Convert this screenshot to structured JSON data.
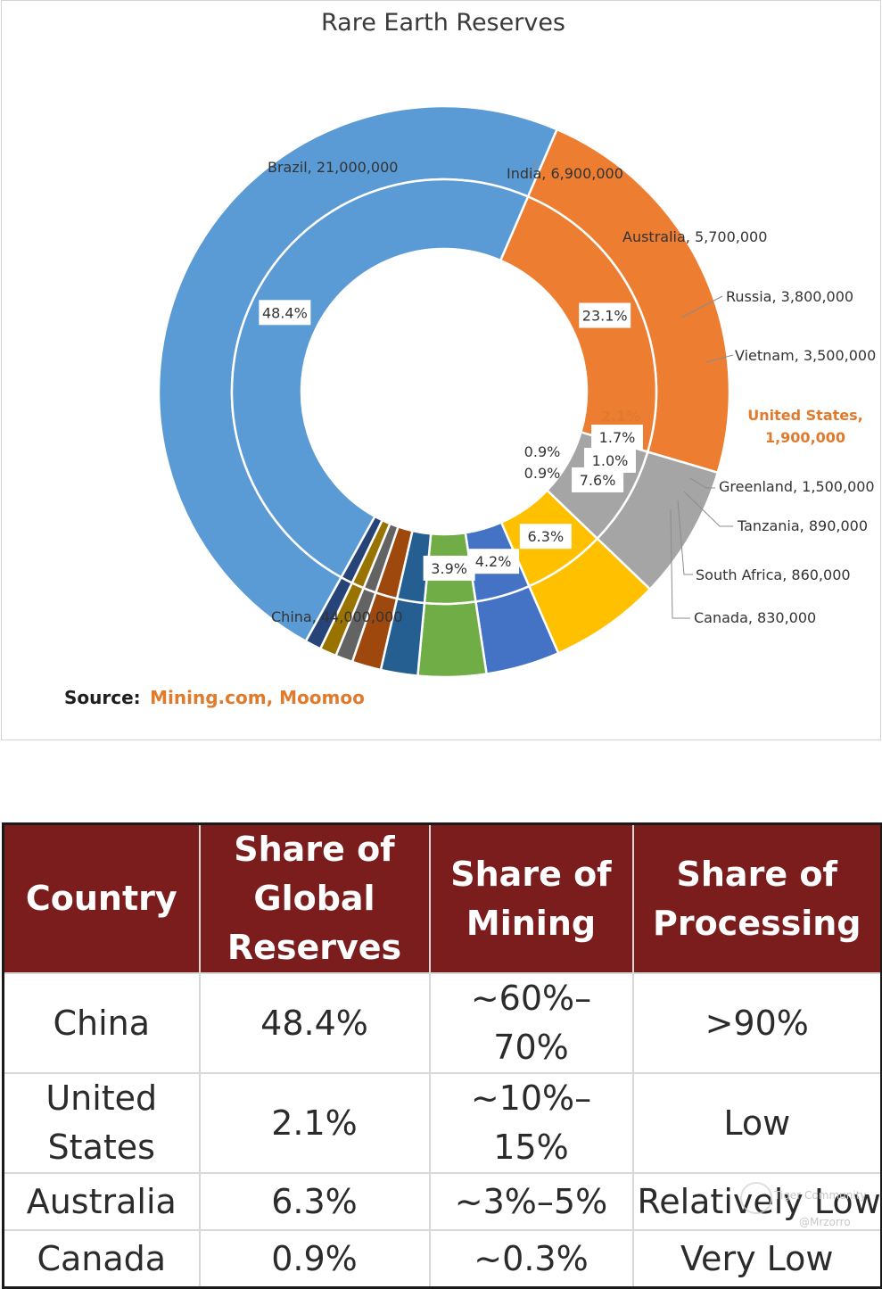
{
  "chart_data": {
    "type": "pie",
    "variant": "doughnut",
    "title": "Rare Earth Reserves",
    "legend": "none",
    "slices": [
      {
        "label": "China, 44,000,000",
        "value": 44000000,
        "pct": "48.4%",
        "color": "#5b9bd5"
      },
      {
        "label": "Brazil, 21,000,000",
        "value": 21000000,
        "pct": "23.1%",
        "color": "#ed7d31"
      },
      {
        "label": "India, 6,900,000",
        "value": 6900000,
        "pct": "7.6%",
        "color": "#a5a5a5"
      },
      {
        "label": "Australia, 5,700,000",
        "value": 5700000,
        "pct": "6.3%",
        "color": "#ffc000"
      },
      {
        "label": "Russia, 3,800,000",
        "value": 3800000,
        "pct": "4.2%",
        "color": "#4472c4"
      },
      {
        "label": "Vietnam, 3,500,000",
        "value": 3500000,
        "pct": "3.9%",
        "color": "#70ad47"
      },
      {
        "label": "United States, 1,900,000",
        "value": 1900000,
        "pct": "2.1%",
        "color": "#255e91",
        "highlight": true
      },
      {
        "label": "Greenland, 1,500,000",
        "value": 1500000,
        "pct": "1.7%",
        "color": "#9e480e"
      },
      {
        "label": "Tanzania, 890,000",
        "value": 890000,
        "pct": "1.0%",
        "color": "#636363"
      },
      {
        "label": "South Africa, 860,000",
        "value": 860000,
        "pct": "0.9%",
        "color": "#997300"
      },
      {
        "label": "Canada, 830,000",
        "value": 830000,
        "pct": "0.9%",
        "color": "#264478"
      }
    ],
    "outer_labels": {
      "china": "China, 44,000,000",
      "brazil": "Brazil, 21,000,000",
      "india": "India, 6,900,000",
      "australia": "Australia, 5,700,000",
      "russia": "Russia, 3,800,000",
      "vietnam": "Vietnam, 3,500,000",
      "us_line1": "United States,",
      "us_line2": "1,900,000",
      "greenland": "Greenland, 1,500,000",
      "tanzania": "Tanzania, 890,000",
      "south_africa": "South Africa, 860,000",
      "canada": "Canada, 830,000"
    },
    "source_lead": "Source:",
    "source_text": "Mining.com, Moomoo",
    "highlight_color": "#e07b2e"
  },
  "table": {
    "headers": [
      "Country",
      "Share of Global Reserves",
      "Share of Mining",
      "Share of Processing"
    ],
    "rows": [
      [
        "China",
        "48.4%",
        "~60%–70%",
        ">90%"
      ],
      [
        "United States",
        "2.1%",
        "~10%–15%",
        "Low"
      ],
      [
        "Australia",
        "6.3%",
        "~3%–5%",
        "Relatively Low"
      ],
      [
        "Canada",
        "0.9%",
        "~0.3%",
        "Very Low"
      ]
    ],
    "header_color": "#7b1d1d"
  },
  "watermark": {
    "text": "Tiger Community",
    "user": "@Mrzorro"
  }
}
